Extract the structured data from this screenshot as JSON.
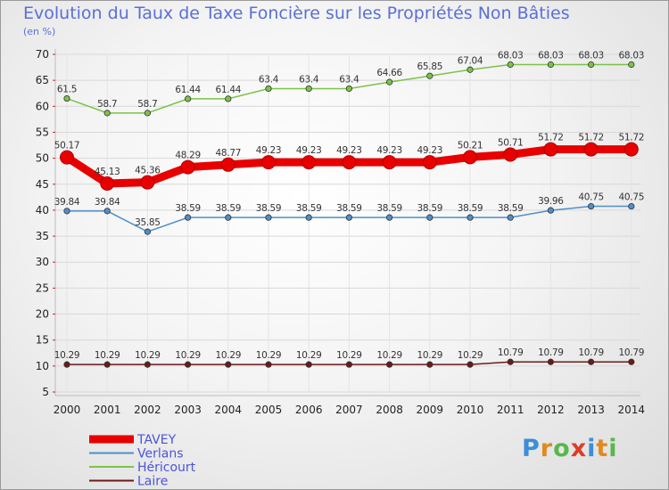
{
  "title": "Evolution du Taux de Taxe Foncière sur les Propriétés Non Bâties",
  "unit_label": "(en %)",
  "logo": {
    "letters": [
      "P",
      "r",
      "o",
      "x",
      "i",
      "t",
      "i"
    ],
    "colors": [
      "#3a8fd8",
      "#e08a1e",
      "#58b84a",
      "#e03a2a",
      "#3a8fd8",
      "#e08a1e",
      "#58b84a"
    ]
  },
  "chart_data": {
    "type": "line",
    "title": "Evolution du Taux de Taxe Foncière sur les Propriétés Non Bâties",
    "ylabel": "(en %)",
    "xlabel": "",
    "ylim": [
      5,
      70
    ],
    "yticks": [
      5,
      10,
      15,
      20,
      25,
      30,
      35,
      40,
      45,
      50,
      55,
      60,
      65,
      70
    ],
    "x": [
      "2000",
      "2001",
      "2002",
      "2003",
      "2004",
      "2005",
      "2006",
      "2007",
      "2008",
      "2009",
      "2010",
      "2011",
      "2012",
      "2013",
      "2014"
    ],
    "grid": true,
    "legend_position": "bottom-left",
    "series": [
      {
        "name": "TAVEY",
        "color": "#e80000",
        "emphasis": true,
        "values": [
          50.17,
          45.13,
          45.36,
          48.29,
          48.77,
          49.23,
          49.23,
          49.23,
          49.23,
          49.23,
          50.21,
          50.71,
          51.72,
          51.72,
          51.72
        ],
        "labels": [
          "50.17",
          "45.13",
          "45.36",
          "48.29",
          "48.77",
          "49.23",
          "49.23",
          "49.23",
          "49.23",
          "49.23",
          "50.21",
          "50.71",
          "51.72",
          "51.72",
          "51.72"
        ]
      },
      {
        "name": "Verlans",
        "color": "#4f8ec9",
        "emphasis": false,
        "values": [
          39.84,
          39.84,
          35.85,
          38.59,
          38.59,
          38.59,
          38.59,
          38.59,
          38.59,
          38.59,
          38.59,
          38.59,
          39.96,
          40.75,
          40.75
        ],
        "labels": [
          "39.84",
          "39.84",
          "35.85",
          "38.59",
          "38.59",
          "38.59",
          "38.59",
          "38.59",
          "38.59",
          "38.59",
          "38.59",
          "38.59",
          "39.96",
          "40.75",
          "40.75"
        ]
      },
      {
        "name": "Héricourt",
        "color": "#7cc24a",
        "emphasis": false,
        "values": [
          61.5,
          58.7,
          58.7,
          61.44,
          61.44,
          63.4,
          63.4,
          63.4,
          64.66,
          65.85,
          67.04,
          68.03,
          68.03,
          68.03,
          68.03
        ],
        "labels": [
          "61.5",
          "58.7",
          "58.7",
          "61.44",
          "61.44",
          "63.4",
          "63.4",
          "63.4",
          "64.66",
          "65.85",
          "67.04",
          "68.03",
          "68.03",
          "68.03",
          "68.03"
        ]
      },
      {
        "name": "Laire",
        "color": "#6b1a1a",
        "emphasis": false,
        "values": [
          10.29,
          10.29,
          10.29,
          10.29,
          10.29,
          10.29,
          10.29,
          10.29,
          10.29,
          10.29,
          10.29,
          10.79,
          10.79,
          10.79,
          10.79
        ],
        "labels": [
          "10.29",
          "10.29",
          "10.29",
          "10.29",
          "10.29",
          "10.29",
          "10.29",
          "10.29",
          "10.29",
          "10.29",
          "10.29",
          "10.79",
          "10.79",
          "10.79",
          "10.79"
        ]
      }
    ]
  }
}
